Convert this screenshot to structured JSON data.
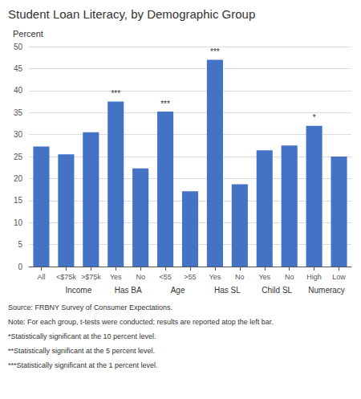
{
  "chart_data": {
    "type": "bar",
    "title": "Student Loan Literacy, by Demographic Group",
    "ylabel": "Percent",
    "color": "#4472C4",
    "categories": [
      "All",
      "<$75k",
      ">$75k",
      "Yes",
      "No",
      "<55",
      ">55",
      "Yes",
      "No",
      "Yes",
      "No",
      "High",
      "Low"
    ],
    "values": [
      27.3,
      25.5,
      30.5,
      37.5,
      22.3,
      35.2,
      17.1,
      47.0,
      18.7,
      26.4,
      27.5,
      32.0,
      25.0
    ],
    "stars": [
      null,
      null,
      null,
      "***",
      null,
      "***",
      null,
      "***",
      null,
      null,
      null,
      "*",
      null
    ],
    "ylim": [
      0,
      50
    ],
    "yticks": [
      0,
      5,
      10,
      15,
      20,
      25,
      30,
      35,
      40,
      45,
      50
    ],
    "grid": true,
    "group_labels": [
      {
        "text": "Income",
        "bar_indices": [
          1,
          2
        ]
      },
      {
        "text": "Has BA",
        "bar_indices": [
          3,
          4
        ]
      },
      {
        "text": "Age",
        "bar_indices": [
          5,
          6
        ]
      },
      {
        "text": "Has SL",
        "bar_indices": [
          7,
          8
        ]
      },
      {
        "text": "Child SL",
        "bar_indices": [
          9,
          10
        ]
      },
      {
        "text": "Numeracy",
        "bar_indices": [
          11,
          12
        ]
      }
    ],
    "footer_lines": [
      "Source: FRBNY Survey of Consumer Expectations.",
      "Note: For each group, t-tests were conducted; results are reported atop the left bar.",
      "*Statistically significant at the 10 percent level.",
      "**Statistically significant at the 5 percent level.",
      "***Statistically significant at the 1 percent level."
    ]
  }
}
